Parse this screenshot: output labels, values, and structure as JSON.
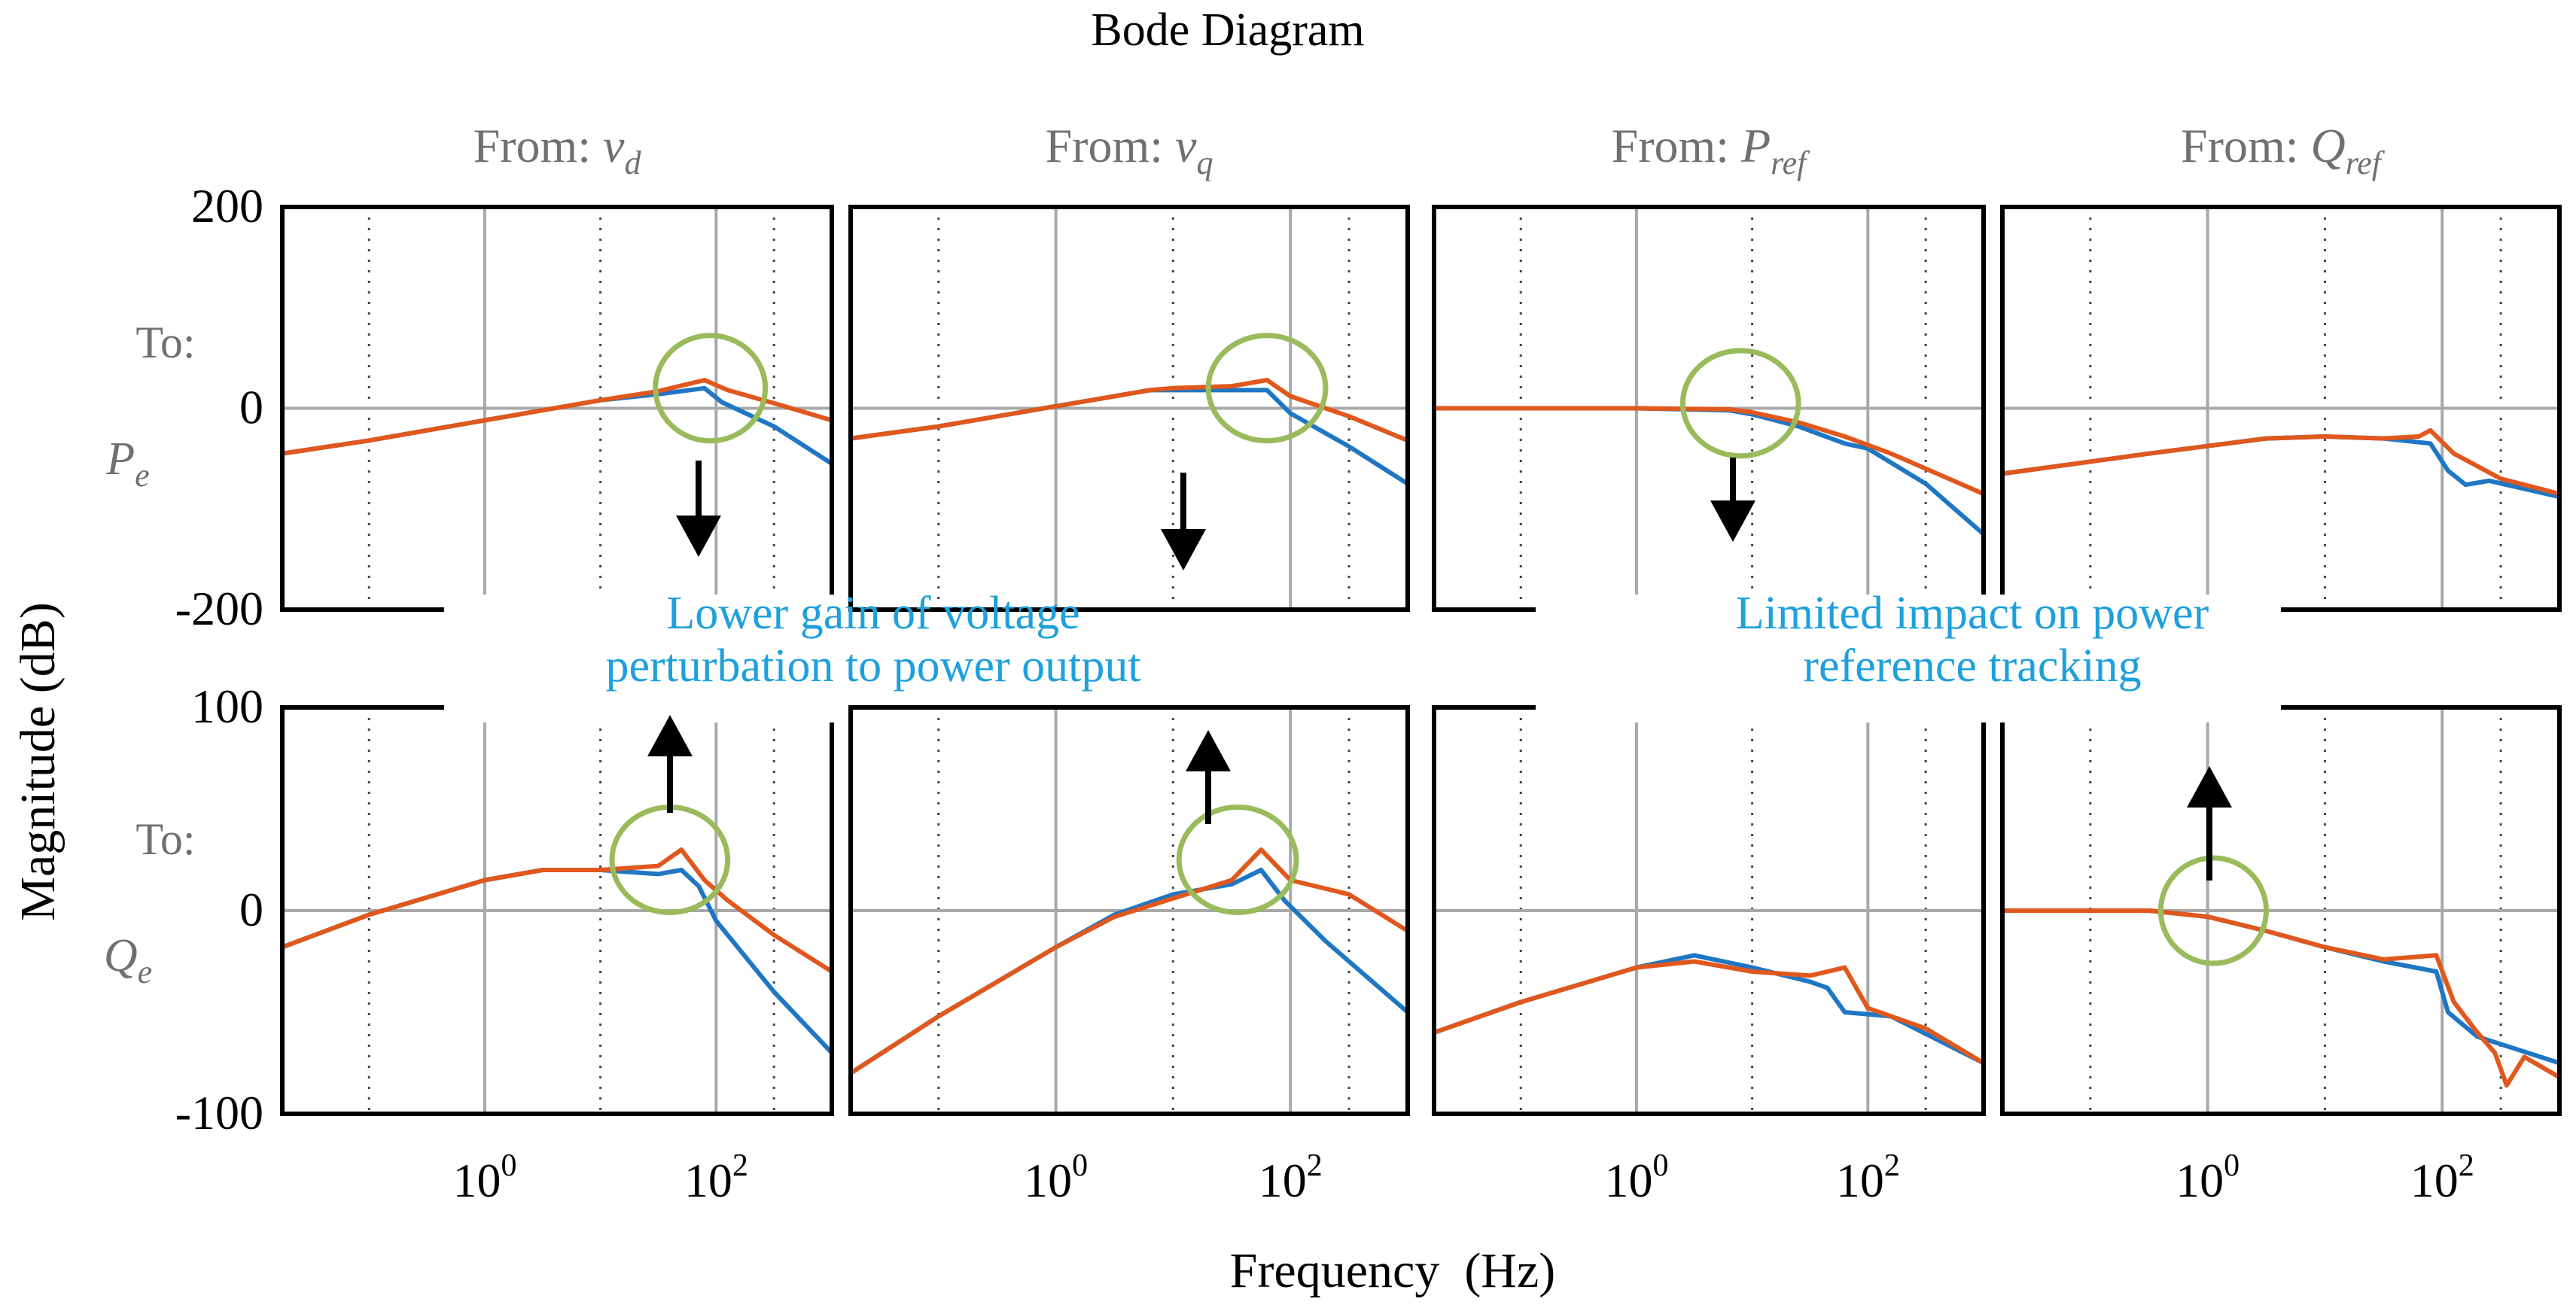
{
  "chart_data": {
    "type": "line",
    "title": "Bode Diagram",
    "xlabel": "Frequency  (Hz)",
    "ylabel": "Magnitude (dB)",
    "xscale": "log",
    "xlim_log10": [
      -1.75,
      3.0
    ],
    "xticks": [
      {
        "base": "10",
        "exp": "0",
        "log10": 0
      },
      {
        "base": "10",
        "exp": "2",
        "log10": 2
      }
    ],
    "grid_dotted_log10": [
      -1,
      1,
      2.5
    ],
    "grid_solid_log10": [
      0,
      2
    ],
    "columns": [
      {
        "prefix": "From: ",
        "var": "v",
        "sub": "d"
      },
      {
        "prefix": "From: ",
        "var": "v",
        "sub": "q"
      },
      {
        "prefix": "From: ",
        "var": "P",
        "sub": "ref"
      },
      {
        "prefix": "From: ",
        "var": "Q",
        "sub": "ref"
      }
    ],
    "rows": [
      {
        "to_label": "To:",
        "var": "P",
        "sub": "e",
        "ylim": [
          -200,
          200
        ],
        "yticks": [
          "200",
          "0",
          "-200"
        ],
        "ytick_values": [
          200,
          0,
          -200
        ]
      },
      {
        "to_label": "To:",
        "var": "Q",
        "sub": "e",
        "ylim": [
          -100,
          100
        ],
        "yticks": [
          "100",
          "0",
          "-100"
        ],
        "ytick_values": [
          100,
          0,
          -100
        ]
      }
    ],
    "series_colors": {
      "blue": "#1f77c4",
      "orange": "#e0581d"
    },
    "series_names": [
      "blue",
      "orange"
    ],
    "panels": [
      {
        "row": 0,
        "col": 0,
        "blue": [
          [
            -1.75,
            -45
          ],
          [
            -1,
            -32
          ],
          [
            0,
            -12
          ],
          [
            0.5,
            -2
          ],
          [
            1,
            8
          ],
          [
            1.5,
            14
          ],
          [
            1.9,
            20
          ],
          [
            2.05,
            6
          ],
          [
            2.5,
            -18
          ],
          [
            3,
            -55
          ]
        ],
        "orange": [
          [
            -1.75,
            -45
          ],
          [
            -1,
            -32
          ],
          [
            0,
            -12
          ],
          [
            0.5,
            -2
          ],
          [
            1,
            8
          ],
          [
            1.5,
            17
          ],
          [
            1.9,
            28
          ],
          [
            2.1,
            18
          ],
          [
            2.5,
            5
          ],
          [
            3,
            -12
          ]
        ]
      },
      {
        "row": 0,
        "col": 1,
        "blue": [
          [
            -1.75,
            -30
          ],
          [
            -1,
            -18
          ],
          [
            0,
            2
          ],
          [
            0.5,
            12
          ],
          [
            0.8,
            18
          ],
          [
            1,
            18
          ],
          [
            1.5,
            18
          ],
          [
            1.8,
            18
          ],
          [
            2,
            -5
          ],
          [
            2.5,
            -38
          ],
          [
            3,
            -75
          ]
        ],
        "orange": [
          [
            -1.75,
            -30
          ],
          [
            -1,
            -18
          ],
          [
            0,
            2
          ],
          [
            0.5,
            12
          ],
          [
            0.8,
            18
          ],
          [
            1,
            20
          ],
          [
            1.5,
            22
          ],
          [
            1.8,
            28
          ],
          [
            2,
            12
          ],
          [
            2.5,
            -8
          ],
          [
            3,
            -32
          ]
        ]
      },
      {
        "row": 0,
        "col": 2,
        "blue": [
          [
            -1.75,
            0
          ],
          [
            0,
            0
          ],
          [
            0.8,
            -2
          ],
          [
            1,
            -6
          ],
          [
            1.4,
            -18
          ],
          [
            1.8,
            -35
          ],
          [
            2,
            -40
          ],
          [
            2.5,
            -75
          ],
          [
            3,
            -125
          ]
        ],
        "orange": [
          [
            -1.75,
            0
          ],
          [
            0,
            0
          ],
          [
            0.8,
            -1
          ],
          [
            1,
            -4
          ],
          [
            1.4,
            -14
          ],
          [
            1.8,
            -28
          ],
          [
            2.2,
            -45
          ],
          [
            3,
            -85
          ]
        ]
      },
      {
        "row": 0,
        "col": 3,
        "blue": [
          [
            -1.75,
            -65
          ],
          [
            -0.5,
            -45
          ],
          [
            0.5,
            -30
          ],
          [
            1,
            -28
          ],
          [
            1.5,
            -30
          ],
          [
            1.9,
            -35
          ],
          [
            2.05,
            -62
          ],
          [
            2.2,
            -76
          ],
          [
            2.4,
            -72
          ],
          [
            3,
            -88
          ]
        ],
        "orange": [
          [
            -1.75,
            -65
          ],
          [
            -0.5,
            -45
          ],
          [
            0.5,
            -30
          ],
          [
            1,
            -28
          ],
          [
            1.5,
            -30
          ],
          [
            1.8,
            -28
          ],
          [
            1.9,
            -22
          ],
          [
            2.1,
            -45
          ],
          [
            2.5,
            -70
          ],
          [
            3,
            -85
          ]
        ]
      },
      {
        "row": 1,
        "col": 0,
        "blue": [
          [
            -1.75,
            -18
          ],
          [
            -1,
            -2
          ],
          [
            0,
            15
          ],
          [
            0.5,
            20
          ],
          [
            1,
            20
          ],
          [
            1.5,
            18
          ],
          [
            1.7,
            20
          ],
          [
            1.85,
            12
          ],
          [
            2,
            -5
          ],
          [
            2.5,
            -40
          ],
          [
            3,
            -70
          ]
        ],
        "orange": [
          [
            -1.75,
            -18
          ],
          [
            -1,
            -2
          ],
          [
            0,
            15
          ],
          [
            0.5,
            20
          ],
          [
            1,
            20
          ],
          [
            1.5,
            22
          ],
          [
            1.7,
            30
          ],
          [
            1.9,
            15
          ],
          [
            2.1,
            5
          ],
          [
            2.5,
            -12
          ],
          [
            3,
            -30
          ]
        ]
      },
      {
        "row": 1,
        "col": 1,
        "blue": [
          [
            -1.75,
            -80
          ],
          [
            -1,
            -52
          ],
          [
            0,
            -18
          ],
          [
            0.5,
            -2
          ],
          [
            1,
            8
          ],
          [
            1.5,
            13
          ],
          [
            1.75,
            20
          ],
          [
            1.95,
            5
          ],
          [
            2.3,
            -15
          ],
          [
            3,
            -50
          ]
        ],
        "orange": [
          [
            -1.75,
            -80
          ],
          [
            -1,
            -52
          ],
          [
            0,
            -18
          ],
          [
            0.5,
            -3
          ],
          [
            1,
            6
          ],
          [
            1.5,
            15
          ],
          [
            1.75,
            30
          ],
          [
            2,
            15
          ],
          [
            2.5,
            8
          ],
          [
            3,
            -10
          ]
        ]
      },
      {
        "row": 1,
        "col": 2,
        "blue": [
          [
            -1.75,
            -60
          ],
          [
            -1,
            -45
          ],
          [
            0,
            -28
          ],
          [
            0.5,
            -22
          ],
          [
            1,
            -28
          ],
          [
            1.5,
            -35
          ],
          [
            1.65,
            -38
          ],
          [
            1.8,
            -50
          ],
          [
            2.2,
            -52
          ],
          [
            3,
            -75
          ]
        ],
        "orange": [
          [
            -1.75,
            -60
          ],
          [
            -1,
            -45
          ],
          [
            0,
            -28
          ],
          [
            0.5,
            -25
          ],
          [
            1,
            -30
          ],
          [
            1.5,
            -32
          ],
          [
            1.8,
            -28
          ],
          [
            2,
            -48
          ],
          [
            2.5,
            -58
          ],
          [
            3,
            -75
          ]
        ]
      },
      {
        "row": 1,
        "col": 3,
        "blue": [
          [
            -1.75,
            0
          ],
          [
            -0.5,
            0
          ],
          [
            0,
            -3
          ],
          [
            0.5,
            -10
          ],
          [
            1,
            -18
          ],
          [
            1.5,
            -25
          ],
          [
            1.95,
            -30
          ],
          [
            2.05,
            -50
          ],
          [
            2.3,
            -62
          ],
          [
            3,
            -75
          ]
        ],
        "orange": [
          [
            -1.75,
            0
          ],
          [
            -0.5,
            0
          ],
          [
            0,
            -3
          ],
          [
            0.5,
            -10
          ],
          [
            1,
            -18
          ],
          [
            1.5,
            -24
          ],
          [
            1.95,
            -22
          ],
          [
            2.1,
            -45
          ],
          [
            2.3,
            -60
          ],
          [
            2.45,
            -70
          ],
          [
            2.55,
            -86
          ],
          [
            2.7,
            -72
          ],
          [
            3,
            -82
          ]
        ]
      }
    ],
    "annotations": [
      {
        "text_lines": [
          "Lower gain of voltage",
          "perturbation to power output"
        ],
        "color": "#1ea0dc"
      },
      {
        "text_lines": [
          "Limited impact on power",
          "reference tracking"
        ],
        "color": "#1ea0dc"
      }
    ],
    "highlight_color": "#99bb5c",
    "highlight_ellipses": [
      {
        "row": 0,
        "col": 0,
        "center_log10": 1.95,
        "center_value": 20,
        "width_decades": 0.95,
        "height_value": 55
      },
      {
        "row": 0,
        "col": 1,
        "center_log10": 1.8,
        "center_value": 20,
        "width_decades": 1.0,
        "height_value": 55
      },
      {
        "row": 0,
        "col": 2,
        "center_log10": 0.9,
        "center_value": 5,
        "width_decades": 1.0,
        "height_value": 55
      },
      {
        "row": 1,
        "col": 0,
        "center_log10": 1.6,
        "center_value": 25,
        "width_decades": 1.0,
        "height_value": 55
      },
      {
        "row": 1,
        "col": 1,
        "center_log10": 1.55,
        "center_value": 25,
        "width_decades": 1.0,
        "height_value": 55
      },
      {
        "row": 1,
        "col": 3,
        "center_log10": 0.05,
        "center_value": 0,
        "width_decades": 0.9,
        "height_value": 55
      }
    ]
  }
}
